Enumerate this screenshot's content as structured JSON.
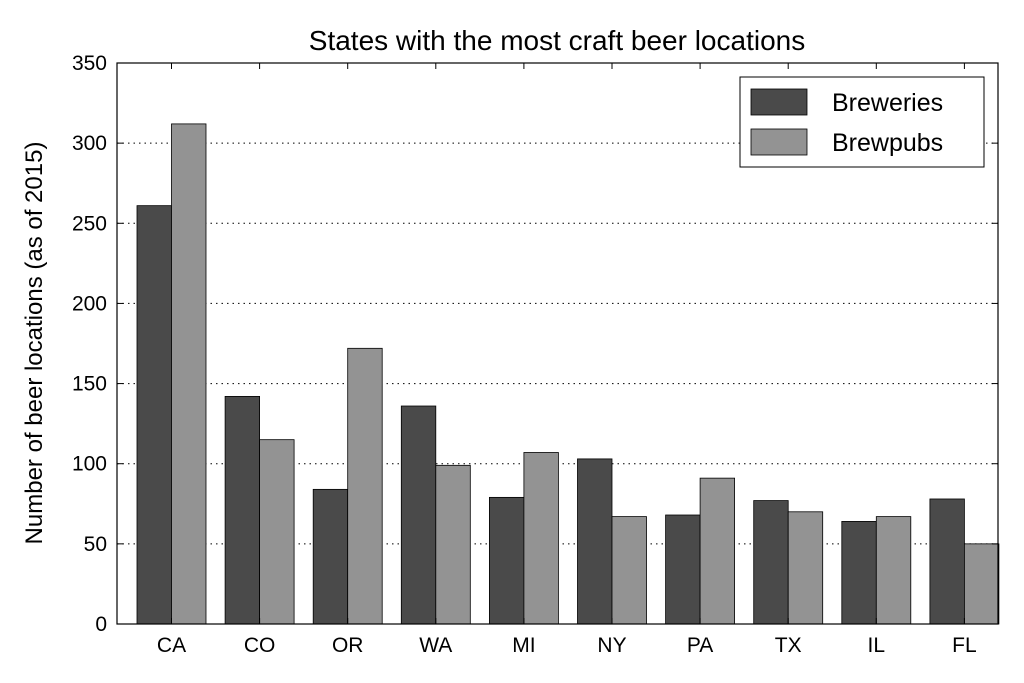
{
  "chart_data": {
    "type": "bar",
    "title": "States with the most craft beer locations",
    "xlabel": "",
    "ylabel": "Number of beer locations (as of 2015)",
    "categories": [
      "CA",
      "CO",
      "OR",
      "WA",
      "MI",
      "NY",
      "PA",
      "TX",
      "IL",
      "FL"
    ],
    "series": [
      {
        "name": "Breweries",
        "color": "#4a4a4a",
        "values": [
          261,
          142,
          84,
          136,
          79,
          103,
          68,
          77,
          64,
          78
        ]
      },
      {
        "name": "Brewpubs",
        "color": "#939393",
        "values": [
          312,
          115,
          172,
          99,
          107,
          67,
          91,
          70,
          67,
          50
        ]
      }
    ],
    "ylim": [
      0,
      350
    ],
    "yticks": [
      0,
      50,
      100,
      150,
      200,
      250,
      300,
      350
    ],
    "grid": "horizontal dotted",
    "legend_position": "top-right"
  }
}
